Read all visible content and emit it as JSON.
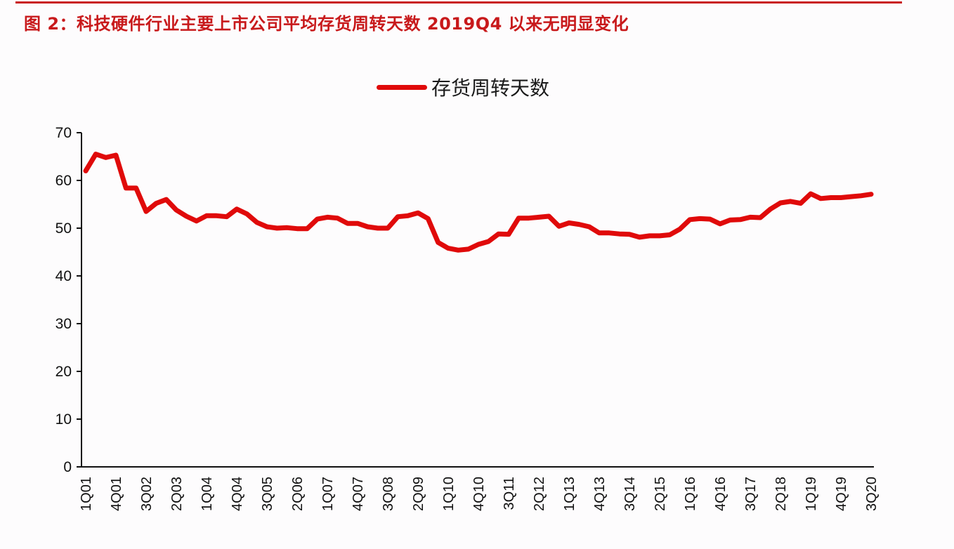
{
  "title": "图 2：科技硬件行业主要上市公司平均存货周转天数 2019Q4 以来无明显变化",
  "legend": {
    "label": "存货周转天数",
    "color": "#e00a0a"
  },
  "colors": {
    "title": "#c8191b",
    "line": "#e00a0a",
    "axis": "#111111"
  },
  "chart_data": {
    "type": "line",
    "title": "科技硬件行业主要上市公司平均存货周转天数 2019Q4 以来无明显变化",
    "xlabel": "",
    "ylabel": "",
    "ylim": [
      0,
      70
    ],
    "yticks": [
      0,
      10,
      20,
      30,
      40,
      50,
      60,
      70
    ],
    "grid": false,
    "legend_position": "top",
    "x_tick_labels": [
      "1Q01",
      "4Q01",
      "3Q02",
      "2Q03",
      "1Q04",
      "4Q04",
      "3Q05",
      "2Q06",
      "1Q07",
      "4Q07",
      "3Q08",
      "2Q09",
      "1Q10",
      "4Q10",
      "3Q11",
      "2Q12",
      "1Q13",
      "4Q13",
      "3Q14",
      "2Q15",
      "1Q16",
      "4Q16",
      "3Q17",
      "2Q18",
      "1Q19",
      "4Q19",
      "3Q20"
    ],
    "categories": [
      "1Q01",
      "2Q01",
      "3Q01",
      "4Q01",
      "1Q02",
      "2Q02",
      "3Q02",
      "4Q02",
      "1Q03",
      "2Q03",
      "3Q03",
      "4Q03",
      "1Q04",
      "2Q04",
      "3Q04",
      "4Q04",
      "1Q05",
      "2Q05",
      "3Q05",
      "4Q05",
      "1Q06",
      "2Q06",
      "3Q06",
      "4Q06",
      "1Q07",
      "2Q07",
      "3Q07",
      "4Q07",
      "1Q08",
      "2Q08",
      "3Q08",
      "4Q08",
      "1Q09",
      "2Q09",
      "3Q09",
      "4Q09",
      "1Q10",
      "2Q10",
      "3Q10",
      "4Q10",
      "1Q11",
      "2Q11",
      "3Q11",
      "4Q11",
      "1Q12",
      "2Q12",
      "3Q12",
      "4Q12",
      "1Q13",
      "2Q13",
      "3Q13",
      "4Q13",
      "1Q14",
      "2Q14",
      "3Q14",
      "4Q14",
      "1Q15",
      "2Q15",
      "3Q15",
      "4Q15",
      "1Q16",
      "2Q16",
      "3Q16",
      "4Q16",
      "1Q17",
      "2Q17",
      "3Q17",
      "4Q17",
      "1Q18",
      "2Q18",
      "3Q18",
      "4Q18",
      "1Q19",
      "2Q19",
      "3Q19",
      "4Q19",
      "1Q20",
      "2Q20",
      "3Q20"
    ],
    "series": [
      {
        "name": "存货周转天数",
        "values": [
          62.0,
          65.5,
          64.8,
          65.3,
          58.4,
          58.4,
          53.5,
          55.2,
          56.0,
          53.8,
          52.5,
          51.5,
          52.6,
          52.6,
          52.4,
          54.0,
          53.0,
          51.2,
          50.3,
          50.0,
          50.1,
          49.9,
          49.9,
          51.9,
          52.3,
          52.1,
          51.0,
          51.0,
          50.3,
          50.0,
          50.0,
          52.4,
          52.6,
          53.2,
          52.0,
          47.0,
          45.8,
          45.4,
          45.6,
          46.6,
          47.2,
          48.8,
          48.7,
          52.1,
          52.1,
          52.3,
          52.5,
          50.4,
          51.1,
          50.8,
          50.3,
          49.0,
          49.0,
          48.8,
          48.7,
          48.1,
          48.4,
          48.4,
          48.6,
          49.8,
          51.8,
          52.0,
          51.9,
          50.9,
          51.7,
          51.8,
          52.3,
          52.2,
          54.0,
          55.3,
          55.6,
          55.2,
          57.2,
          56.2,
          56.4,
          56.4,
          56.6,
          56.8,
          57.1
        ]
      }
    ]
  }
}
